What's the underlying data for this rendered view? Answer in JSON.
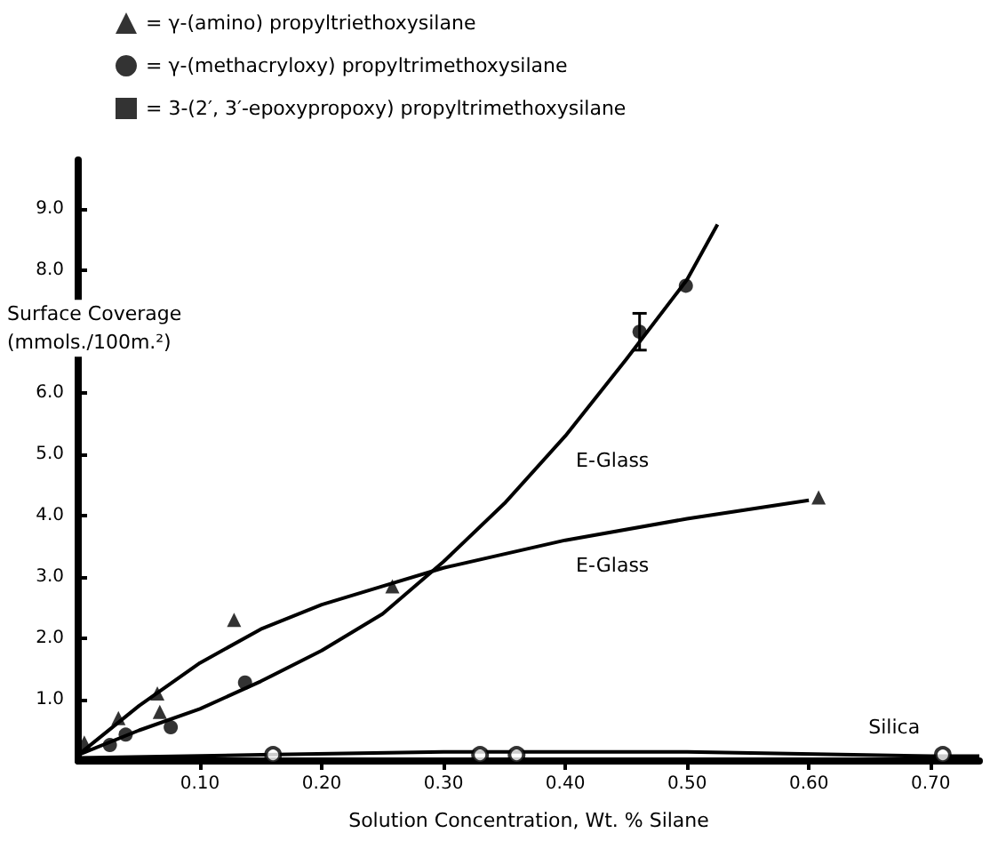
{
  "chart_data": {
    "type": "scatter",
    "xlabel": "Solution Concentration, Wt. % Silane",
    "ylabel": "Surface Coverage\n(mmols./100m.²)",
    "xlim": [
      0,
      0.74
    ],
    "ylim": [
      0,
      9.8
    ],
    "xticks": [
      {
        "value": 0.1,
        "label": "0.10"
      },
      {
        "value": 0.2,
        "label": "0.20"
      },
      {
        "value": 0.3,
        "label": "0.30"
      },
      {
        "value": 0.4,
        "label": "0.40"
      },
      {
        "value": 0.5,
        "label": "0.50"
      },
      {
        "value": 0.6,
        "label": "0.60"
      },
      {
        "value": 0.7,
        "label": "0.70"
      }
    ],
    "yticks": [
      {
        "value": 1,
        "label": "1.0"
      },
      {
        "value": 2,
        "label": "2.0"
      },
      {
        "value": 3,
        "label": "3.0"
      },
      {
        "value": 4,
        "label": "4.0"
      },
      {
        "value": 5,
        "label": "5.0"
      },
      {
        "value": 6,
        "label": "6.0"
      },
      {
        "value": 8,
        "label": "8.0"
      },
      {
        "value": 9,
        "label": "9.0"
      }
    ],
    "legend": "top left",
    "grid": false,
    "series": [
      {
        "name": "= γ-(amino) propyltriethoxysilane",
        "color": "#000000",
        "marker": "triangle",
        "x": [
          0.005,
          0.033,
          0.065,
          0.067,
          0.128,
          0.258,
          0.608
        ],
        "values": [
          0.3,
          0.7,
          1.1,
          0.8,
          2.3,
          2.85,
          4.3
        ]
      },
      {
        "name": "= γ-(methacryloxy) propyltrimethoxysilane",
        "color": "#000000",
        "marker": "circle",
        "x": [
          0.026,
          0.039,
          0.076,
          0.137,
          0.461,
          0.499
        ],
        "values": [
          0.26,
          0.43,
          0.55,
          1.28,
          7.0,
          7.75
        ],
        "errors": [
          null,
          null,
          null,
          null,
          0.3,
          null
        ]
      },
      {
        "name": "= 3-(2′, 3′-epoxypropoxy) propyltrimethoxysilane",
        "color": "#000000",
        "marker": "square"
      },
      {
        "type": "scatter",
        "color": "#000000",
        "marker": "emptyCircle",
        "x": [
          0.16,
          0.33,
          0.36,
          0.71
        ],
        "values": [
          0.1,
          0.1,
          0.1,
          0.1
        ]
      },
      {
        "type": "line",
        "name": "E-Glass",
        "color": "#000000",
        "marker": "none",
        "x": [
          0,
          0.05,
          0.1,
          0.15,
          0.2,
          0.25,
          0.3,
          0.4,
          0.5,
          0.6
        ],
        "values": [
          0.1,
          0.9,
          1.6,
          2.15,
          2.55,
          2.85,
          3.15,
          3.6,
          3.95,
          4.25
        ]
      },
      {
        "type": "line",
        "name": "E-Glass",
        "color": "#000000",
        "marker": "none",
        "x": [
          0,
          0.05,
          0.1,
          0.15,
          0.2,
          0.25,
          0.3,
          0.35,
          0.4,
          0.45,
          0.5,
          0.525
        ],
        "values": [
          0.1,
          0.5,
          0.85,
          1.3,
          1.8,
          2.4,
          3.25,
          4.2,
          5.3,
          6.55,
          7.85,
          8.75
        ]
      },
      {
        "type": "line",
        "name": "Silica",
        "color": "#000000",
        "marker": "none",
        "x": [
          0,
          0.15,
          0.3,
          0.5,
          0.7,
          0.74
        ],
        "values": [
          0.05,
          0.1,
          0.15,
          0.15,
          0.08,
          0.08
        ]
      }
    ]
  }
}
